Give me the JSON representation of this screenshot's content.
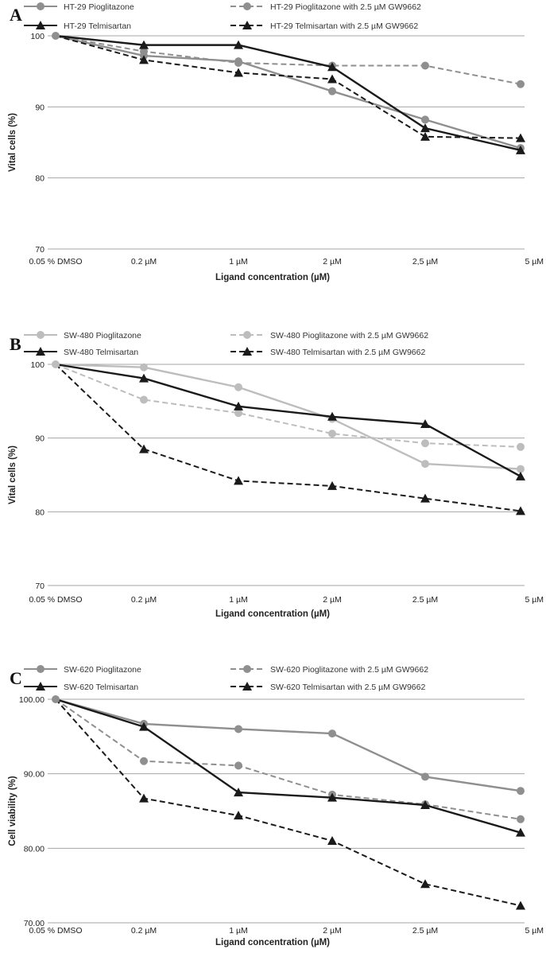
{
  "colors": {
    "pioglitazone": "#8f8f8f",
    "pioglitazone_gw": "#8f8f8f",
    "pioglitazone_b": "#bdbdbd",
    "pioglitazone_gw_b": "#bdbdbd",
    "telmisartan": "#1a1a1a",
    "telmisartan_gw": "#1a1a1a",
    "grid": "#a6a6a6"
  },
  "chart_data": [
    {
      "panel": "A",
      "type": "line",
      "categories": [
        "0.05 % DMSO",
        "0.2 µM",
        "1 µM",
        "2 µM",
        "2,5 µM",
        "5 µM"
      ],
      "xlabel": "Ligand concentration (µM)",
      "ylabel": "Vital cells (%)",
      "ylim": [
        70,
        100
      ],
      "yticks": [
        "70",
        "80",
        "90",
        "100"
      ],
      "grid": true,
      "legend_position": "top",
      "series": [
        {
          "name": "HT-29 Pioglitazone",
          "style": "solid",
          "marker": "circle",
          "color_key": "pioglitazone",
          "values": [
            100,
            97.2,
            96.4,
            92.2,
            88.2,
            84.2
          ]
        },
        {
          "name": "HT-29 Pioglitazone with 2.5 µM GW9662",
          "style": "dashed",
          "marker": "circle",
          "color_key": "pioglitazone_gw",
          "values": [
            100,
            97.8,
            96.2,
            95.8,
            95.8,
            93.2
          ]
        },
        {
          "name": "HT-29 Telmisartan",
          "style": "solid",
          "marker": "triangle",
          "color_key": "telmisartan",
          "values": [
            100,
            98.7,
            98.7,
            95.6,
            87.0,
            83.9
          ]
        },
        {
          "name": "HT-29 Telmisartan with 2.5 µM GW9662",
          "style": "dashed",
          "marker": "triangle",
          "color_key": "telmisartan_gw",
          "values": [
            100,
            96.6,
            94.8,
            93.9,
            85.8,
            85.6
          ]
        }
      ]
    },
    {
      "panel": "B",
      "type": "line",
      "categories": [
        "0.05 % DMSO",
        "0.2 µM",
        "1 µM",
        "2 µM",
        "2.5 µM",
        "5 µM"
      ],
      "xlabel": "Ligand concentration (µM)",
      "ylabel": "Vital cells (%)",
      "ylim": [
        70,
        100
      ],
      "yticks": [
        "70",
        "80",
        "90",
        "100"
      ],
      "grid": true,
      "legend_position": "top",
      "series": [
        {
          "name": "SW-480 Pioglitazone",
          "style": "solid",
          "marker": "circle",
          "color_key": "pioglitazone_b",
          "values": [
            100,
            99.6,
            96.9,
            92.6,
            86.5,
            85.8
          ]
        },
        {
          "name": "SW-480 Pioglitazone with 2.5 µM GW9662",
          "style": "dashed",
          "marker": "circle",
          "color_key": "pioglitazone_gw_b",
          "values": [
            100,
            95.2,
            93.4,
            90.6,
            89.3,
            88.8
          ]
        },
        {
          "name": "SW-480 Telmisartan",
          "style": "solid",
          "marker": "triangle",
          "color_key": "telmisartan",
          "values": [
            100,
            98.1,
            94.3,
            92.9,
            91.9,
            84.8
          ]
        },
        {
          "name": "SW-480 Telmisartan with 2.5 µM GW9662",
          "style": "dashed",
          "marker": "triangle",
          "color_key": "telmisartan_gw",
          "values": [
            100,
            88.5,
            84.2,
            83.5,
            81.8,
            80.1
          ]
        }
      ]
    },
    {
      "panel": "C",
      "type": "line",
      "categories": [
        "0.05 % DMSO",
        "0.2 µM",
        "1 µM",
        "2 µM",
        "2.5 µM",
        "5 µM"
      ],
      "xlabel": "Ligand concentration (µM)",
      "ylabel": "Cell viability (%)",
      "ylim": [
        70,
        100
      ],
      "yticks": [
        "70.00",
        "80.00",
        "90.00",
        "100.00"
      ],
      "grid": true,
      "legend_position": "top",
      "series": [
        {
          "name": "SW-620 Pioglitazone",
          "style": "solid",
          "marker": "circle",
          "color_key": "pioglitazone",
          "values": [
            100,
            96.7,
            96.0,
            95.4,
            89.6,
            87.7
          ]
        },
        {
          "name": "SW-620 Pioglitazone with 2.5 µM GW9662",
          "style": "dashed",
          "marker": "circle",
          "color_key": "pioglitazone_gw",
          "values": [
            100,
            91.7,
            91.1,
            87.2,
            85.9,
            83.9
          ]
        },
        {
          "name": "SW-620 Telmisartan",
          "style": "solid",
          "marker": "triangle",
          "color_key": "telmisartan",
          "values": [
            100,
            96.3,
            87.5,
            86.8,
            85.8,
            82.1
          ]
        },
        {
          "name": "SW-620 Telmisartan with 2.5 µM GW9662",
          "style": "dashed",
          "marker": "triangle",
          "color_key": "telmisartan_gw",
          "values": [
            100,
            86.7,
            84.4,
            81.0,
            75.2,
            72.3
          ]
        }
      ]
    }
  ]
}
